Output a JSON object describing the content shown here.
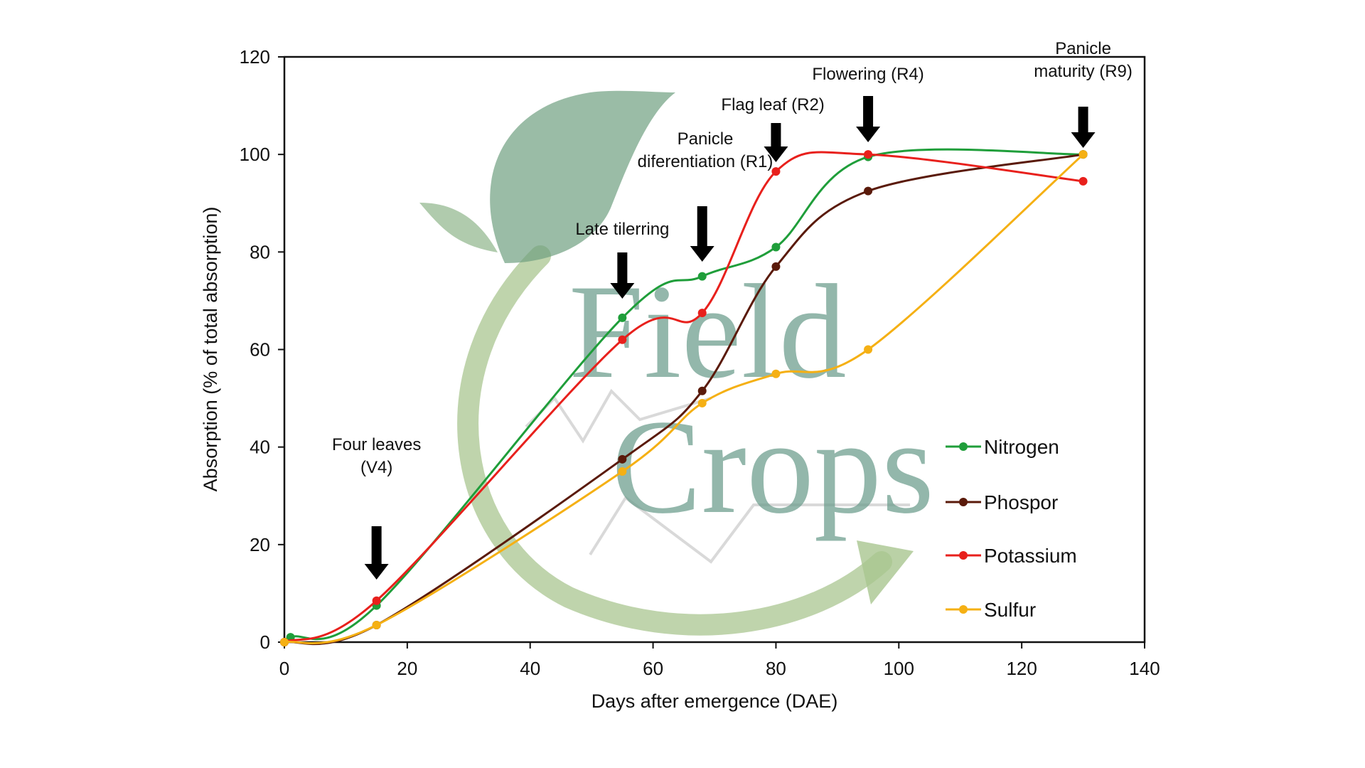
{
  "watermark": {
    "line1": "Field",
    "line2": "Crops"
  },
  "chart_data": {
    "type": "line",
    "xlabel": "Days after emergence (DAE)",
    "ylabel": "Absorption (% of total absorption)",
    "xlim": [
      0,
      140
    ],
    "ylim": [
      0,
      120
    ],
    "x_ticks": [
      0,
      20,
      40,
      60,
      80,
      100,
      120,
      140
    ],
    "y_ticks": [
      0,
      20,
      40,
      60,
      80,
      100,
      120
    ],
    "grid": false,
    "legend_position": "right",
    "series": [
      {
        "name": "Nitrogen",
        "color": "#1f9e3a",
        "points": [
          [
            0,
            0
          ],
          [
            1,
            1
          ],
          [
            15,
            7.5
          ],
          [
            55,
            66.5
          ],
          [
            68,
            75
          ],
          [
            80,
            81
          ],
          [
            95,
            99.5
          ],
          [
            130,
            100
          ]
        ]
      },
      {
        "name": "Phospor",
        "color": "#5a1a0a",
        "points": [
          [
            0,
            0
          ],
          [
            15,
            3.5
          ],
          [
            55,
            37.5
          ],
          [
            68,
            51.5
          ],
          [
            80,
            77
          ],
          [
            95,
            92.5
          ],
          [
            130,
            100
          ]
        ]
      },
      {
        "name": "Potassium",
        "color": "#e8201c",
        "points": [
          [
            0,
            0
          ],
          [
            15,
            8.5
          ],
          [
            55,
            62
          ],
          [
            68,
            67.5
          ],
          [
            80,
            96.5
          ],
          [
            95,
            100
          ],
          [
            130,
            94.5
          ]
        ]
      },
      {
        "name": "Sulfur",
        "color": "#f5b014",
        "points": [
          [
            0,
            0
          ],
          [
            15,
            3.5
          ],
          [
            55,
            35
          ],
          [
            68,
            49
          ],
          [
            80,
            55
          ],
          [
            95,
            60
          ],
          [
            130,
            100
          ]
        ]
      }
    ],
    "annotations": [
      {
        "lines": [
          "Four leaves",
          "(V4)"
        ],
        "x": 15
      },
      {
        "lines": [
          "Late tilerring"
        ],
        "x": 55
      },
      {
        "lines": [
          "Panicle",
          "diferentiation (R1)"
        ],
        "x": 68
      },
      {
        "lines": [
          "Flag leaf (R2)"
        ],
        "x": 80
      },
      {
        "lines": [
          "Flowering (R4)"
        ],
        "x": 95
      },
      {
        "lines": [
          "Panicle",
          "maturity (R9)"
        ],
        "x": 130
      }
    ]
  }
}
